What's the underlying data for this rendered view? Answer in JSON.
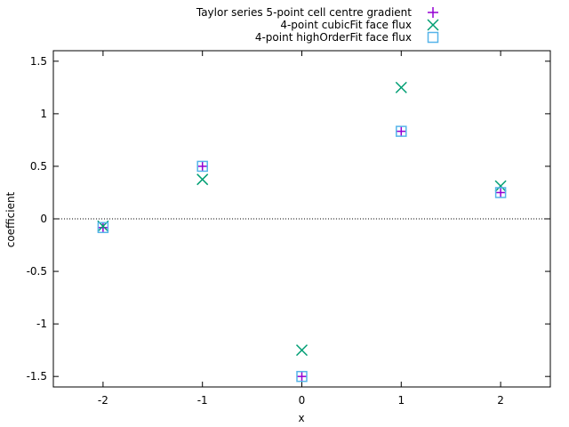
{
  "chart_data": {
    "type": "scatter",
    "xlabel": "x",
    "ylabel": "coefficient",
    "xlim": [
      -2.5,
      2.5
    ],
    "ylim": [
      -1.6,
      1.6
    ],
    "xticks": [
      -2,
      -1,
      0,
      1,
      2
    ],
    "yticks": [
      -1.5,
      -1,
      -0.5,
      0,
      0.5,
      1,
      1.5
    ],
    "legend_position": "top-center",
    "zero_line": true,
    "series": [
      {
        "name": "Taylor series 5-point cell centre gradient",
        "marker": "plus",
        "color": "#9400d3",
        "x": [
          -2,
          -1,
          0,
          1,
          2
        ],
        "y": [
          -0.083,
          0.5,
          -1.5,
          0.833,
          0.25
        ]
      },
      {
        "name": "4-point cubicFit face flux",
        "marker": "cross",
        "color": "#009e73",
        "x": [
          -2,
          -1,
          0,
          1,
          2
        ],
        "y": [
          -0.07,
          0.375,
          -1.25,
          1.25,
          0.312
        ]
      },
      {
        "name": "4-point highOrderFit face flux",
        "marker": "square",
        "color": "#56b4e9",
        "x": [
          -2,
          -1,
          0,
          1,
          2
        ],
        "y": [
          -0.083,
          0.5,
          -1.5,
          0.833,
          0.25
        ]
      }
    ]
  }
}
